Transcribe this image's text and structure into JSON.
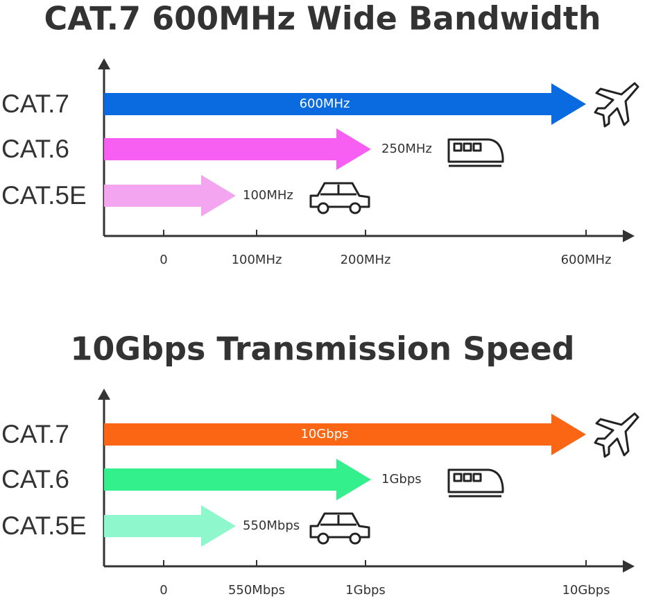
{
  "panels": [
    {
      "title": "CAT.7 600MHz Wide Bandwidth",
      "rows": [
        {
          "label": "CAT.7",
          "value": "600MHz",
          "color": "#0a6be0"
        },
        {
          "label": "CAT.6",
          "value": "250MHz",
          "color": "#f65ff2"
        },
        {
          "label": "CAT.5E",
          "value": "100MHz",
          "color": "#f3a6ef"
        }
      ],
      "ticks": [
        "0",
        "100MHz",
        "200MHz",
        "600MHz"
      ]
    },
    {
      "title": "10Gbps Transmission Speed",
      "rows": [
        {
          "label": "CAT.7",
          "value": "10Gbps",
          "color": "#fb6614"
        },
        {
          "label": "CAT.6",
          "value": "1Gbps",
          "color": "#33f08c"
        },
        {
          "label": "CAT.5E",
          "value": "550Mbps",
          "color": "#8ff7cc"
        }
      ],
      "ticks": [
        "0",
        "550Mbps",
        "1Gbps",
        "10Gbps"
      ]
    }
  ]
}
